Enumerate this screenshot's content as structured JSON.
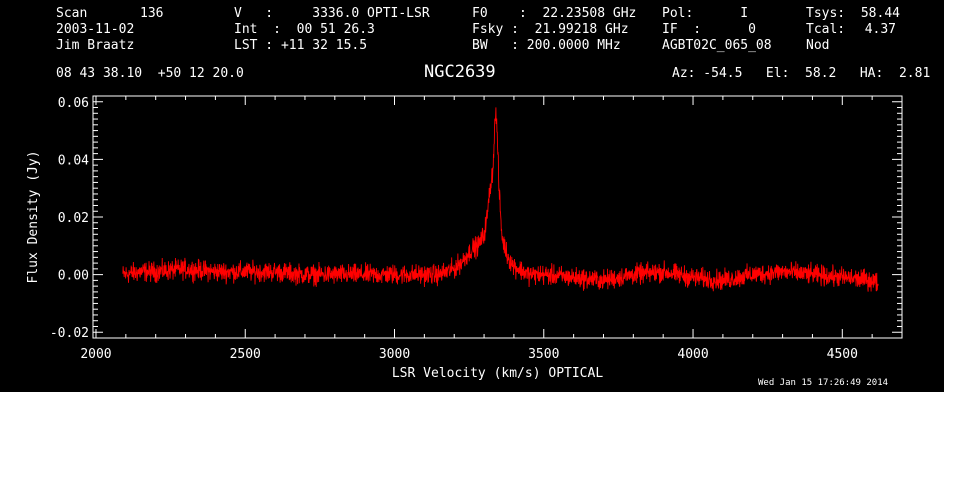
{
  "header": {
    "col1": {
      "scan_label": "Scan",
      "scan_value": "136",
      "date": "2003-11-02",
      "observer": "Jim Braatz"
    },
    "col2": {
      "v": "V   :     3336.0 OPTI-LSR",
      "int": "Int  :  00 51 26.3",
      "lst": "LST : +11 32 15.5"
    },
    "col3": {
      "f0": "F0    :  22.23508 GHz",
      "fsky": "Fsky :  21.99218 GHz",
      "bw": "BW   : 200.0000 MHz"
    },
    "col4": {
      "pol": "Pol:      I",
      "if": "IF  :      0",
      "project": "AGBT02C_065_08"
    },
    "col5": {
      "tsys_label": "Tsys:",
      "tsys_value": "58.44",
      "tcal_label": "Tcal:",
      "tcal_value": "4.37",
      "mode": "Nod"
    },
    "coords": "08 43 38.10  +50 12 20.0",
    "source": "NGC2639",
    "azelha": "Az: -54.5   El:  58.2   HA:  2.81",
    "timestamp": "Wed Jan 15 17:26:49 2014"
  },
  "chart_data": {
    "type": "line",
    "title": "NGC2639",
    "xlabel": "LSR Velocity (km/s) OPTICAL",
    "ylabel": "Flux Density (Jy)",
    "xlim": [
      1990,
      4700
    ],
    "ylim": [
      -0.022,
      0.062
    ],
    "x_ticks": [
      2000,
      2500,
      3000,
      3500,
      4000,
      4500
    ],
    "y_ticks": [
      -0.02,
      0.0,
      0.02,
      0.04,
      0.06
    ],
    "y_tick_labels": [
      "-0.02",
      "0.00",
      "0.02",
      "0.04",
      "0.06"
    ],
    "grid": false,
    "colors": {
      "series": "#ff0000",
      "axes": "#ffffff",
      "background": "#000000"
    },
    "series": [
      {
        "x": [
          2090,
          2150,
          2200,
          2300,
          2400,
          2500,
          2600,
          2700,
          2800,
          2900,
          3000,
          3100,
          3150,
          3200,
          3230,
          3260,
          3280,
          3300,
          3310,
          3320,
          3330,
          3335,
          3340,
          3345,
          3350,
          3360,
          3380,
          3400,
          3450,
          3500,
          3600,
          3700,
          3800,
          3900,
          4000,
          4100,
          4200,
          4300,
          4400,
          4500,
          4600,
          4620
        ],
        "values": [
          0.0,
          0.001,
          0.001,
          0.002,
          0.001,
          0.001,
          0.001,
          0.0,
          0.0,
          0.0,
          0.0,
          0.0,
          0.0,
          0.002,
          0.005,
          0.009,
          0.01,
          0.014,
          0.02,
          0.03,
          0.037,
          0.05,
          0.057,
          0.046,
          0.03,
          0.013,
          0.006,
          0.003,
          0.0,
          0.0,
          -0.001,
          -0.002,
          0.0,
          0.001,
          -0.001,
          -0.002,
          0.0,
          0.001,
          0.0,
          -0.001,
          -0.002,
          -0.003
        ]
      }
    ]
  }
}
